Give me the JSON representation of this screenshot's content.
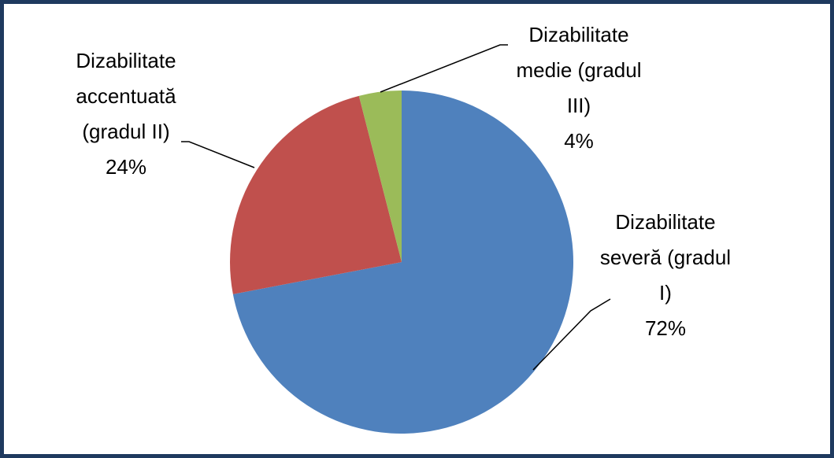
{
  "chart_data": {
    "type": "pie",
    "categories": [
      "Dizabilitate severă (gradul I)",
      "Dizabilitate accentuată (gradul II)",
      "Dizabilitate medie (gradul III)"
    ],
    "values": [
      72,
      24,
      4
    ],
    "value_labels": [
      "72%",
      "24%",
      "4%"
    ],
    "colors": [
      "#4f81bd",
      "#c0504d",
      "#9bbb59"
    ]
  }
}
